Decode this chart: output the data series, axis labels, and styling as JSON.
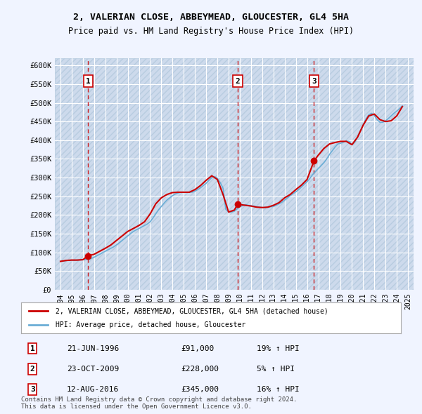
{
  "title_line1": "2, VALERIAN CLOSE, ABBEYMEAD, GLOUCESTER, GL4 5HA",
  "title_line2": "Price paid vs. HM Land Registry's House Price Index (HPI)",
  "ylabel": "",
  "background_color": "#f0f4ff",
  "plot_bg_color": "#dce8f5",
  "grid_color": "#ffffff",
  "hatch_color": "#c8d8ee",
  "sale_dates": [
    1996.47,
    2009.81,
    2016.62
  ],
  "sale_prices": [
    91000,
    228000,
    345000
  ],
  "sale_labels": [
    "1",
    "2",
    "3"
  ],
  "sale_info": [
    {
      "label": "1",
      "date": "21-JUN-1996",
      "price": "£91,000",
      "pct": "19% ↑ HPI"
    },
    {
      "label": "2",
      "date": "23-OCT-2009",
      "price": "£228,000",
      "pct": "5% ↑ HPI"
    },
    {
      "label": "3",
      "date": "12-AUG-2016",
      "price": "£345,000",
      "pct": "16% ↑ HPI"
    }
  ],
  "legend_line1": "2, VALERIAN CLOSE, ABBEYMEAD, GLOUCESTER, GL4 5HA (detached house)",
  "legend_line2": "HPI: Average price, detached house, Gloucester",
  "footer": "Contains HM Land Registry data © Crown copyright and database right 2024.\nThis data is licensed under the Open Government Licence v3.0.",
  "ylim": [
    0,
    620000
  ],
  "yticks": [
    0,
    50000,
    100000,
    150000,
    200000,
    250000,
    300000,
    350000,
    400000,
    450000,
    500000,
    550000,
    600000
  ],
  "ytick_labels": [
    "£0",
    "£50K",
    "£100K",
    "£150K",
    "£200K",
    "£250K",
    "£300K",
    "£350K",
    "£400K",
    "£450K",
    "£500K",
    "£550K",
    "£600K"
  ],
  "xlim_start": 1993.5,
  "xlim_end": 2025.5,
  "xticks": [
    1994,
    1995,
    1996,
    1997,
    1998,
    1999,
    2000,
    2001,
    2002,
    2003,
    2004,
    2005,
    2006,
    2007,
    2008,
    2009,
    2010,
    2011,
    2012,
    2013,
    2014,
    2015,
    2016,
    2017,
    2018,
    2019,
    2020,
    2021,
    2022,
    2023,
    2024,
    2025
  ],
  "hpi_x": [
    1994.0,
    1994.25,
    1994.5,
    1994.75,
    1995.0,
    1995.25,
    1995.5,
    1995.75,
    1996.0,
    1996.25,
    1996.5,
    1996.75,
    1997.0,
    1997.25,
    1997.5,
    1997.75,
    1998.0,
    1998.25,
    1998.5,
    1998.75,
    1999.0,
    1999.25,
    1999.5,
    1999.75,
    2000.0,
    2000.25,
    2000.5,
    2000.75,
    2001.0,
    2001.25,
    2001.5,
    2001.75,
    2002.0,
    2002.25,
    2002.5,
    2002.75,
    2003.0,
    2003.25,
    2003.5,
    2003.75,
    2004.0,
    2004.25,
    2004.5,
    2004.75,
    2005.0,
    2005.25,
    2005.5,
    2005.75,
    2006.0,
    2006.25,
    2006.5,
    2006.75,
    2007.0,
    2007.25,
    2007.5,
    2007.75,
    2008.0,
    2008.25,
    2008.5,
    2008.75,
    2009.0,
    2009.25,
    2009.5,
    2009.75,
    2010.0,
    2010.25,
    2010.5,
    2010.75,
    2011.0,
    2011.25,
    2011.5,
    2011.75,
    2012.0,
    2012.25,
    2012.5,
    2012.75,
    2013.0,
    2013.25,
    2013.5,
    2013.75,
    2014.0,
    2014.25,
    2014.5,
    2014.75,
    2015.0,
    2015.25,
    2015.5,
    2015.75,
    2016.0,
    2016.25,
    2016.5,
    2016.75,
    2017.0,
    2017.25,
    2017.5,
    2017.75,
    2018.0,
    2018.25,
    2018.5,
    2018.75,
    2019.0,
    2019.25,
    2019.5,
    2019.75,
    2020.0,
    2020.25,
    2020.5,
    2020.75,
    2021.0,
    2021.25,
    2021.5,
    2021.75,
    2022.0,
    2022.25,
    2022.5,
    2022.75,
    2023.0,
    2023.25,
    2023.5,
    2023.75,
    2024.0,
    2024.25,
    2024.5
  ],
  "hpi_y": [
    76000,
    77000,
    78000,
    79000,
    79500,
    79000,
    79500,
    80000,
    80500,
    81000,
    82000,
    84000,
    87000,
    91000,
    95000,
    99000,
    103000,
    107000,
    111000,
    115000,
    120000,
    126000,
    132000,
    138000,
    144000,
    150000,
    156000,
    160000,
    164000,
    168000,
    172000,
    176000,
    182000,
    192000,
    203000,
    214000,
    223000,
    232000,
    240000,
    246000,
    252000,
    256000,
    259000,
    261000,
    261000,
    261000,
    261000,
    261000,
    264000,
    268000,
    273000,
    279000,
    285000,
    293000,
    300000,
    303000,
    298000,
    287000,
    272000,
    215000,
    208000,
    208000,
    210000,
    216000,
    222000,
    225000,
    228000,
    226000,
    225000,
    224000,
    222000,
    221000,
    220000,
    220000,
    221000,
    222000,
    223000,
    226000,
    230000,
    234000,
    240000,
    246000,
    252000,
    257000,
    262000,
    268000,
    275000,
    282000,
    289000,
    298000,
    308000,
    316000,
    324000,
    332000,
    340000,
    350000,
    362000,
    372000,
    382000,
    390000,
    392000,
    395000,
    398000,
    397000,
    388000,
    395000,
    408000,
    425000,
    442000,
    457000,
    468000,
    472000,
    466000,
    455000,
    448000,
    448000,
    452000,
    458000,
    465000,
    472000,
    478000,
    485000,
    492000
  ],
  "sale_line_x": [
    1994.0,
    1994.5,
    1995.0,
    1995.5,
    1996.0,
    1996.47,
    1997.0,
    1997.5,
    1998.0,
    1998.5,
    1999.0,
    1999.5,
    2000.0,
    2000.5,
    2001.0,
    2001.5,
    2002.0,
    2002.5,
    2003.0,
    2003.5,
    2004.0,
    2004.5,
    2005.0,
    2005.5,
    2006.0,
    2006.5,
    2007.0,
    2007.5,
    2008.0,
    2008.5,
    2009.0,
    2009.5,
    2009.81,
    2010.0,
    2010.5,
    2011.0,
    2011.5,
    2012.0,
    2012.5,
    2013.0,
    2013.5,
    2014.0,
    2014.5,
    2015.0,
    2015.5,
    2016.0,
    2016.62,
    2017.0,
    2017.5,
    2018.0,
    2018.5,
    2019.0,
    2019.5,
    2020.0,
    2020.5,
    2021.0,
    2021.5,
    2022.0,
    2022.5,
    2023.0,
    2023.5,
    2024.0,
    2024.5
  ],
  "sale_line_y": [
    76000,
    78500,
    79500,
    79500,
    80500,
    91000,
    95000,
    103000,
    111000,
    120000,
    132000,
    144000,
    156000,
    164000,
    172000,
    182000,
    203000,
    230000,
    246000,
    255000,
    260000,
    261000,
    261000,
    261000,
    268000,
    279000,
    293000,
    305000,
    295000,
    255000,
    208000,
    213000,
    228000,
    228000,
    226000,
    224000,
    221000,
    220000,
    221000,
    226000,
    233000,
    246000,
    255000,
    268000,
    280000,
    295000,
    345000,
    360000,
    378000,
    390000,
    394000,
    397000,
    397000,
    388000,
    408000,
    440000,
    465000,
    470000,
    455000,
    450000,
    452000,
    465000,
    490000
  ]
}
